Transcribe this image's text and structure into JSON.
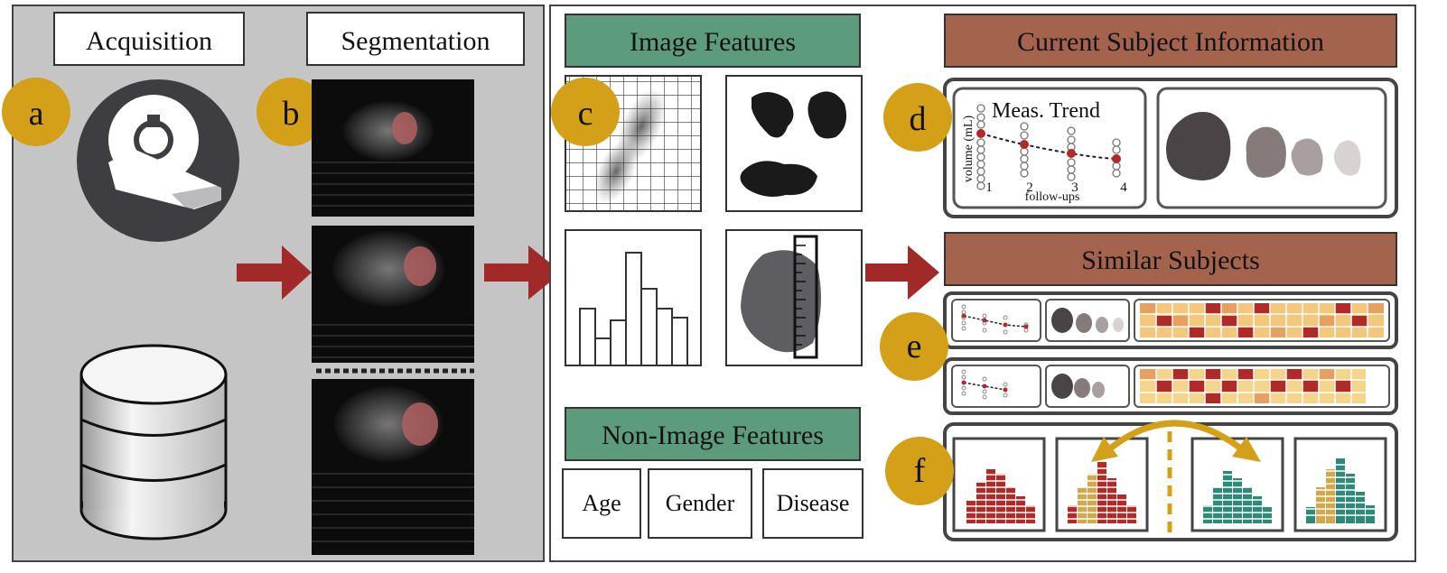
{
  "left_panel": {
    "acquisition_label": "Acquisition",
    "segmentation_label": "Segmentation",
    "marker_a": "a",
    "marker_b": "b"
  },
  "features_panel": {
    "image_features_title": "Image Features",
    "non_image_features_title": "Non-Image Features",
    "marker_c": "c",
    "non_image_items": [
      "Age",
      "Gender",
      "Disease"
    ]
  },
  "info_panel": {
    "current_subject_title": "Current Subject Information",
    "similar_subjects_title": "Similar Subjects",
    "marker_d": "d",
    "marker_e": "e",
    "marker_f": "f",
    "trend_title": "Meas. Trend",
    "trend_ylabel": "volume (mL)",
    "trend_xlabel": "follow-ups",
    "trend_ticks": [
      "1",
      "2",
      "3",
      "4"
    ]
  },
  "colors": {
    "marker": "#d4a017",
    "green_header": "#5c9c7c",
    "brown_header": "#a4634c",
    "arrow": "#a12a28",
    "left_bg": "#c8c8c8"
  }
}
